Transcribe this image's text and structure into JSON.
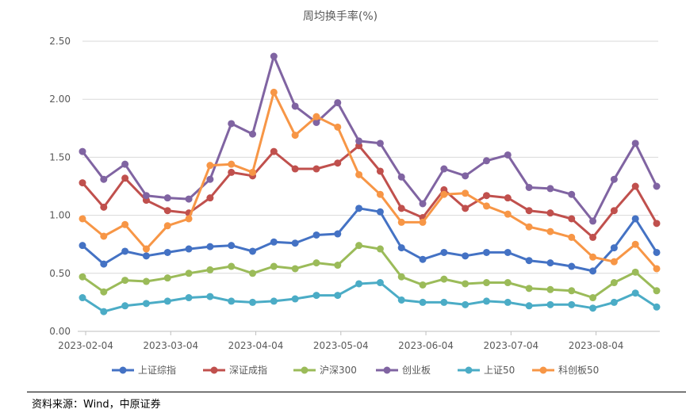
{
  "chart_data": {
    "type": "line",
    "title": "周均换手率(%)",
    "xlabel": "",
    "ylabel": "",
    "ylim": [
      0,
      2.5
    ],
    "yticks": [
      "0.00",
      "0.50",
      "1.00",
      "1.50",
      "2.00",
      "2.50"
    ],
    "xtick_labels": [
      "2023-02-04",
      "2023-03-04",
      "2023-04-04",
      "2023-05-04",
      "2023-06-04",
      "2023-07-04",
      "2023-08-04"
    ],
    "x": [
      "2023-02-03",
      "2023-02-10",
      "2023-02-17",
      "2023-02-24",
      "2023-03-03",
      "2023-03-10",
      "2023-03-17",
      "2023-03-24",
      "2023-03-31",
      "2023-04-07",
      "2023-04-14",
      "2023-04-21",
      "2023-04-28",
      "2023-05-05",
      "2023-05-12",
      "2023-05-19",
      "2023-05-26",
      "2023-06-02",
      "2023-06-09",
      "2023-06-16",
      "2023-06-23",
      "2023-06-30",
      "2023-07-07",
      "2023-07-14",
      "2023-07-21",
      "2023-07-28",
      "2023-08-04",
      "2023-08-11"
    ],
    "series": [
      {
        "name": "上证综指",
        "color": "#4472c4",
        "values": [
          0.74,
          0.58,
          0.69,
          0.65,
          0.68,
          0.71,
          0.73,
          0.74,
          0.69,
          0.77,
          0.76,
          0.83,
          0.84,
          1.06,
          1.03,
          0.72,
          0.62,
          0.68,
          0.65,
          0.68,
          0.68,
          0.61,
          0.59,
          0.56,
          0.52,
          0.72,
          0.97,
          0.68
        ]
      },
      {
        "name": "深证成指",
        "color": "#c0504d",
        "values": [
          1.28,
          1.07,
          1.32,
          1.13,
          1.04,
          1.02,
          1.15,
          1.37,
          1.34,
          1.55,
          1.4,
          1.4,
          1.45,
          1.6,
          1.38,
          1.06,
          0.98,
          1.22,
          1.06,
          1.17,
          1.15,
          1.04,
          1.02,
          0.97,
          0.81,
          1.04,
          1.25,
          0.93
        ]
      },
      {
        "name": "沪深300",
        "color": "#9bbb59",
        "values": [
          0.47,
          0.34,
          0.44,
          0.43,
          0.46,
          0.5,
          0.53,
          0.56,
          0.5,
          0.56,
          0.54,
          0.59,
          0.57,
          0.74,
          0.71,
          0.47,
          0.4,
          0.45,
          0.41,
          0.42,
          0.42,
          0.37,
          0.36,
          0.35,
          0.29,
          0.42,
          0.51,
          0.35
        ]
      },
      {
        "name": "创业板",
        "color": "#8064a2",
        "values": [
          1.55,
          1.31,
          1.44,
          1.17,
          1.15,
          1.14,
          1.31,
          1.79,
          1.7,
          2.37,
          1.94,
          1.8,
          1.97,
          1.64,
          1.62,
          1.33,
          1.1,
          1.4,
          1.34,
          1.47,
          1.52,
          1.24,
          1.23,
          1.18,
          0.95,
          1.31,
          1.62,
          1.25
        ]
      },
      {
        "name": "上证50",
        "color": "#4bacc6",
        "values": [
          0.29,
          0.17,
          0.22,
          0.24,
          0.26,
          0.29,
          0.3,
          0.26,
          0.25,
          0.26,
          0.28,
          0.31,
          0.31,
          0.41,
          0.42,
          0.27,
          0.25,
          0.25,
          0.23,
          0.26,
          0.25,
          0.22,
          0.23,
          0.23,
          0.2,
          0.25,
          0.33,
          0.21
        ]
      },
      {
        "name": "科创板50",
        "color": "#f79646",
        "values": [
          0.97,
          0.82,
          0.92,
          0.71,
          0.91,
          0.97,
          1.43,
          1.44,
          1.37,
          2.06,
          1.69,
          1.85,
          1.76,
          1.35,
          1.18,
          0.94,
          0.94,
          1.18,
          1.19,
          1.08,
          1.01,
          0.9,
          0.86,
          0.81,
          0.64,
          0.6,
          0.75,
          0.54
        ]
      }
    ]
  },
  "footer": {
    "source": "资料来源：Wind，中原证券"
  }
}
